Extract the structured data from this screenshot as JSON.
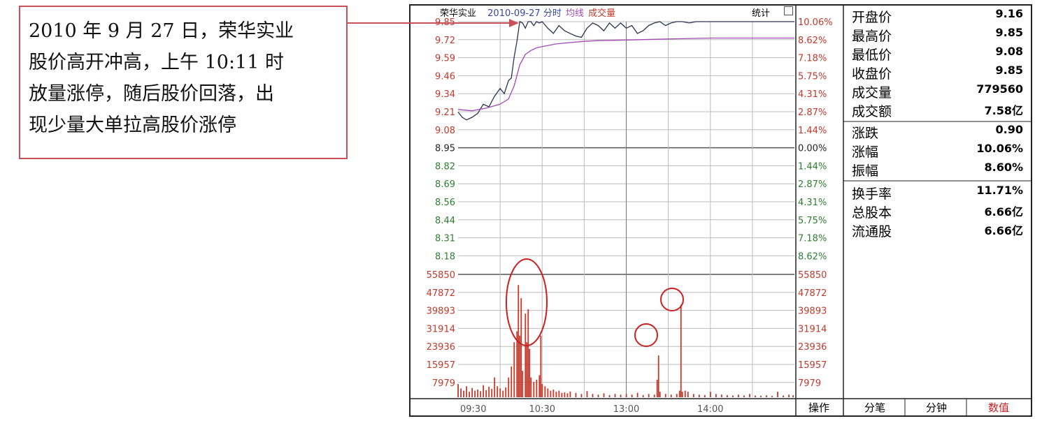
{
  "annotation": {
    "lines": [
      "2010 年 9 月 27 日，荣华实业",
      "股价高开冲高，上午 10:11 时",
      "放量涨停，随后股价回落，出",
      "现少量大单拉高股价涨停"
    ]
  },
  "header": {
    "stock_name": "荣华实业",
    "date_label": "2010-09-27 分时",
    "avg_label": "均线",
    "vol_label": "成交量",
    "stats_label": "统计"
  },
  "quote_panel": {
    "group1": [
      {
        "label": "开盘价",
        "value": "9.16"
      },
      {
        "label": "最高价",
        "value": "9.85"
      },
      {
        "label": "最低价",
        "value": "9.08"
      },
      {
        "label": "收盘价",
        "value": "9.85"
      },
      {
        "label": "成交量",
        "value": "779560"
      },
      {
        "label": "成交额",
        "value": "7.58亿"
      }
    ],
    "group2": [
      {
        "label": "涨跌",
        "value": "0.90"
      },
      {
        "label": "涨幅",
        "value": "10.06%"
      },
      {
        "label": "振幅",
        "value": "8.60%"
      }
    ],
    "group3": [
      {
        "label": "换手率",
        "value": "11.71%"
      },
      {
        "label": "总股本",
        "value": "6.66亿"
      },
      {
        "label": "流通股",
        "value": "6.66亿"
      }
    ]
  },
  "bottom_tabs": [
    "操作",
    "分笔",
    "分钟",
    "数值"
  ],
  "colors": {
    "up": "#c0392b",
    "down": "#2e7d32",
    "price": "#2a3350",
    "avg": "#a04ab5",
    "vol": "#c0392b",
    "highlight": "#cc1f1f"
  },
  "chart_data": {
    "type": "line",
    "price_ticks": [
      "9.85",
      "9.72",
      "9.59",
      "9.46",
      "9.34",
      "9.21",
      "9.08",
      "8.95",
      "8.82",
      "8.69",
      "8.56",
      "8.44",
      "8.31",
      "8.18"
    ],
    "pct_ticks": [
      "10.06%",
      "8.62%",
      "7.18%",
      "5.75%",
      "4.31%",
      "2.87%",
      "1.44%",
      "0.00%",
      "1.44%",
      "2.87%",
      "4.31%",
      "5.75%",
      "7.18%",
      "8.62%"
    ],
    "prev_close": 8.95,
    "ylim": [
      8.05,
      9.85
    ],
    "vol_ticks": [
      "55850",
      "47872",
      "39893",
      "31914",
      "23936",
      "15957",
      "7979"
    ],
    "vol_ylim": [
      0,
      59000
    ],
    "x_ticks": [
      "09:30",
      "10:30",
      "13:00",
      "14:00"
    ],
    "x_tick_minutes": [
      0,
      60,
      120,
      180
    ],
    "total_minutes": 240,
    "series": [
      {
        "name": "荣华实业",
        "x": [
          0,
          3,
          6,
          10,
          14,
          18,
          22,
          26,
          30,
          33,
          36,
          38,
          40,
          42,
          44,
          46,
          48,
          50,
          52,
          54,
          56,
          58,
          60,
          64,
          68,
          72,
          76,
          80,
          84,
          88,
          92,
          96,
          100,
          104,
          108,
          112,
          116,
          120,
          124,
          128,
          132,
          136,
          140,
          144,
          148,
          152,
          156,
          160,
          165,
          170,
          175,
          180,
          190,
          200,
          210,
          220,
          230,
          240
        ],
        "values": [
          9.16,
          9.12,
          9.1,
          9.12,
          9.15,
          9.22,
          9.2,
          9.28,
          9.34,
          9.3,
          9.4,
          9.42,
          9.58,
          9.7,
          9.85,
          9.84,
          9.8,
          9.85,
          9.85,
          9.82,
          9.85,
          9.84,
          9.85,
          9.8,
          9.76,
          9.82,
          9.78,
          9.76,
          9.74,
          9.73,
          9.8,
          9.84,
          9.82,
          9.78,
          9.84,
          9.8,
          9.84,
          9.8,
          9.82,
          9.76,
          9.78,
          9.82,
          9.84,
          9.85,
          9.82,
          9.84,
          9.85,
          9.85,
          9.84,
          9.85,
          9.85,
          9.85,
          9.85,
          9.85,
          9.85,
          9.85,
          9.85,
          9.85
        ]
      },
      {
        "name": "均线",
        "x": [
          0,
          10,
          20,
          30,
          36,
          40,
          44,
          48,
          52,
          56,
          60,
          70,
          80,
          90,
          100,
          120,
          140,
          160,
          180,
          200,
          220,
          240
        ],
        "values": [
          9.18,
          9.17,
          9.19,
          9.22,
          9.26,
          9.36,
          9.52,
          9.6,
          9.63,
          9.65,
          9.66,
          9.68,
          9.69,
          9.7,
          9.705,
          9.71,
          9.715,
          9.72,
          9.725,
          9.725,
          9.725,
          9.725
        ]
      }
    ],
    "volume": [
      {
        "x": 0,
        "v": 6000
      },
      {
        "x": 2,
        "v": 4000
      },
      {
        "x": 4,
        "v": 3000
      },
      {
        "x": 6,
        "v": 5000
      },
      {
        "x": 8,
        "v": 2500
      },
      {
        "x": 10,
        "v": 4200
      },
      {
        "x": 12,
        "v": 3000
      },
      {
        "x": 14,
        "v": 3500
      },
      {
        "x": 16,
        "v": 2800
      },
      {
        "x": 18,
        "v": 5500
      },
      {
        "x": 20,
        "v": 3200
      },
      {
        "x": 22,
        "v": 4800
      },
      {
        "x": 24,
        "v": 3800
      },
      {
        "x": 26,
        "v": 9000
      },
      {
        "x": 28,
        "v": 5000
      },
      {
        "x": 30,
        "v": 4000
      },
      {
        "x": 32,
        "v": 3000
      },
      {
        "x": 34,
        "v": 4500
      },
      {
        "x": 36,
        "v": 9000
      },
      {
        "x": 38,
        "v": 14000
      },
      {
        "x": 40,
        "v": 25000
      },
      {
        "x": 42,
        "v": 30000
      },
      {
        "x": 43,
        "v": 51000
      },
      {
        "x": 44,
        "v": 28000
      },
      {
        "x": 45,
        "v": 45000
      },
      {
        "x": 46,
        "v": 12000
      },
      {
        "x": 48,
        "v": 38000
      },
      {
        "x": 49,
        "v": 25000
      },
      {
        "x": 50,
        "v": 40000
      },
      {
        "x": 51,
        "v": 22000
      },
      {
        "x": 52,
        "v": 9000
      },
      {
        "x": 54,
        "v": 7000
      },
      {
        "x": 56,
        "v": 8000
      },
      {
        "x": 58,
        "v": 10000
      },
      {
        "x": 59,
        "v": 28000
      },
      {
        "x": 60,
        "v": 6000
      },
      {
        "x": 62,
        "v": 5000
      },
      {
        "x": 64,
        "v": 4000
      },
      {
        "x": 66,
        "v": 3000
      },
      {
        "x": 68,
        "v": 3500
      },
      {
        "x": 70,
        "v": 2500
      },
      {
        "x": 72,
        "v": 3000
      },
      {
        "x": 74,
        "v": 2000
      },
      {
        "x": 76,
        "v": 2200
      },
      {
        "x": 78,
        "v": 1800
      },
      {
        "x": 80,
        "v": 2600
      },
      {
        "x": 84,
        "v": 2000
      },
      {
        "x": 88,
        "v": 1500
      },
      {
        "x": 92,
        "v": 2800
      },
      {
        "x": 96,
        "v": 1500
      },
      {
        "x": 100,
        "v": 1200
      },
      {
        "x": 104,
        "v": 1800
      },
      {
        "x": 108,
        "v": 1000
      },
      {
        "x": 112,
        "v": 1500
      },
      {
        "x": 116,
        "v": 1200
      },
      {
        "x": 120,
        "v": 1500
      },
      {
        "x": 124,
        "v": 1200
      },
      {
        "x": 128,
        "v": 2000
      },
      {
        "x": 132,
        "v": 1000
      },
      {
        "x": 136,
        "v": 1500
      },
      {
        "x": 140,
        "v": 1200
      },
      {
        "x": 142,
        "v": 8000
      },
      {
        "x": 143,
        "v": 19000
      },
      {
        "x": 144,
        "v": 2500
      },
      {
        "x": 148,
        "v": 1500
      },
      {
        "x": 152,
        "v": 1200
      },
      {
        "x": 156,
        "v": 1500
      },
      {
        "x": 158,
        "v": 3000
      },
      {
        "x": 159,
        "v": 42000
      },
      {
        "x": 160,
        "v": 2500
      },
      {
        "x": 162,
        "v": 3000
      },
      {
        "x": 164,
        "v": 2500
      },
      {
        "x": 168,
        "v": 1500
      },
      {
        "x": 172,
        "v": 1200
      },
      {
        "x": 176,
        "v": 1000
      },
      {
        "x": 180,
        "v": 2500
      },
      {
        "x": 184,
        "v": 1500
      },
      {
        "x": 188,
        "v": 1200
      },
      {
        "x": 192,
        "v": 1000
      },
      {
        "x": 196,
        "v": 800
      },
      {
        "x": 200,
        "v": 1200
      },
      {
        "x": 204,
        "v": 800
      },
      {
        "x": 208,
        "v": 1500
      },
      {
        "x": 212,
        "v": 800
      },
      {
        "x": 216,
        "v": 700
      },
      {
        "x": 220,
        "v": 900
      },
      {
        "x": 224,
        "v": 600
      },
      {
        "x": 228,
        "v": 2500
      },
      {
        "x": 232,
        "v": 800
      },
      {
        "x": 236,
        "v": 1200
      },
      {
        "x": 239,
        "v": 900
      }
    ]
  }
}
